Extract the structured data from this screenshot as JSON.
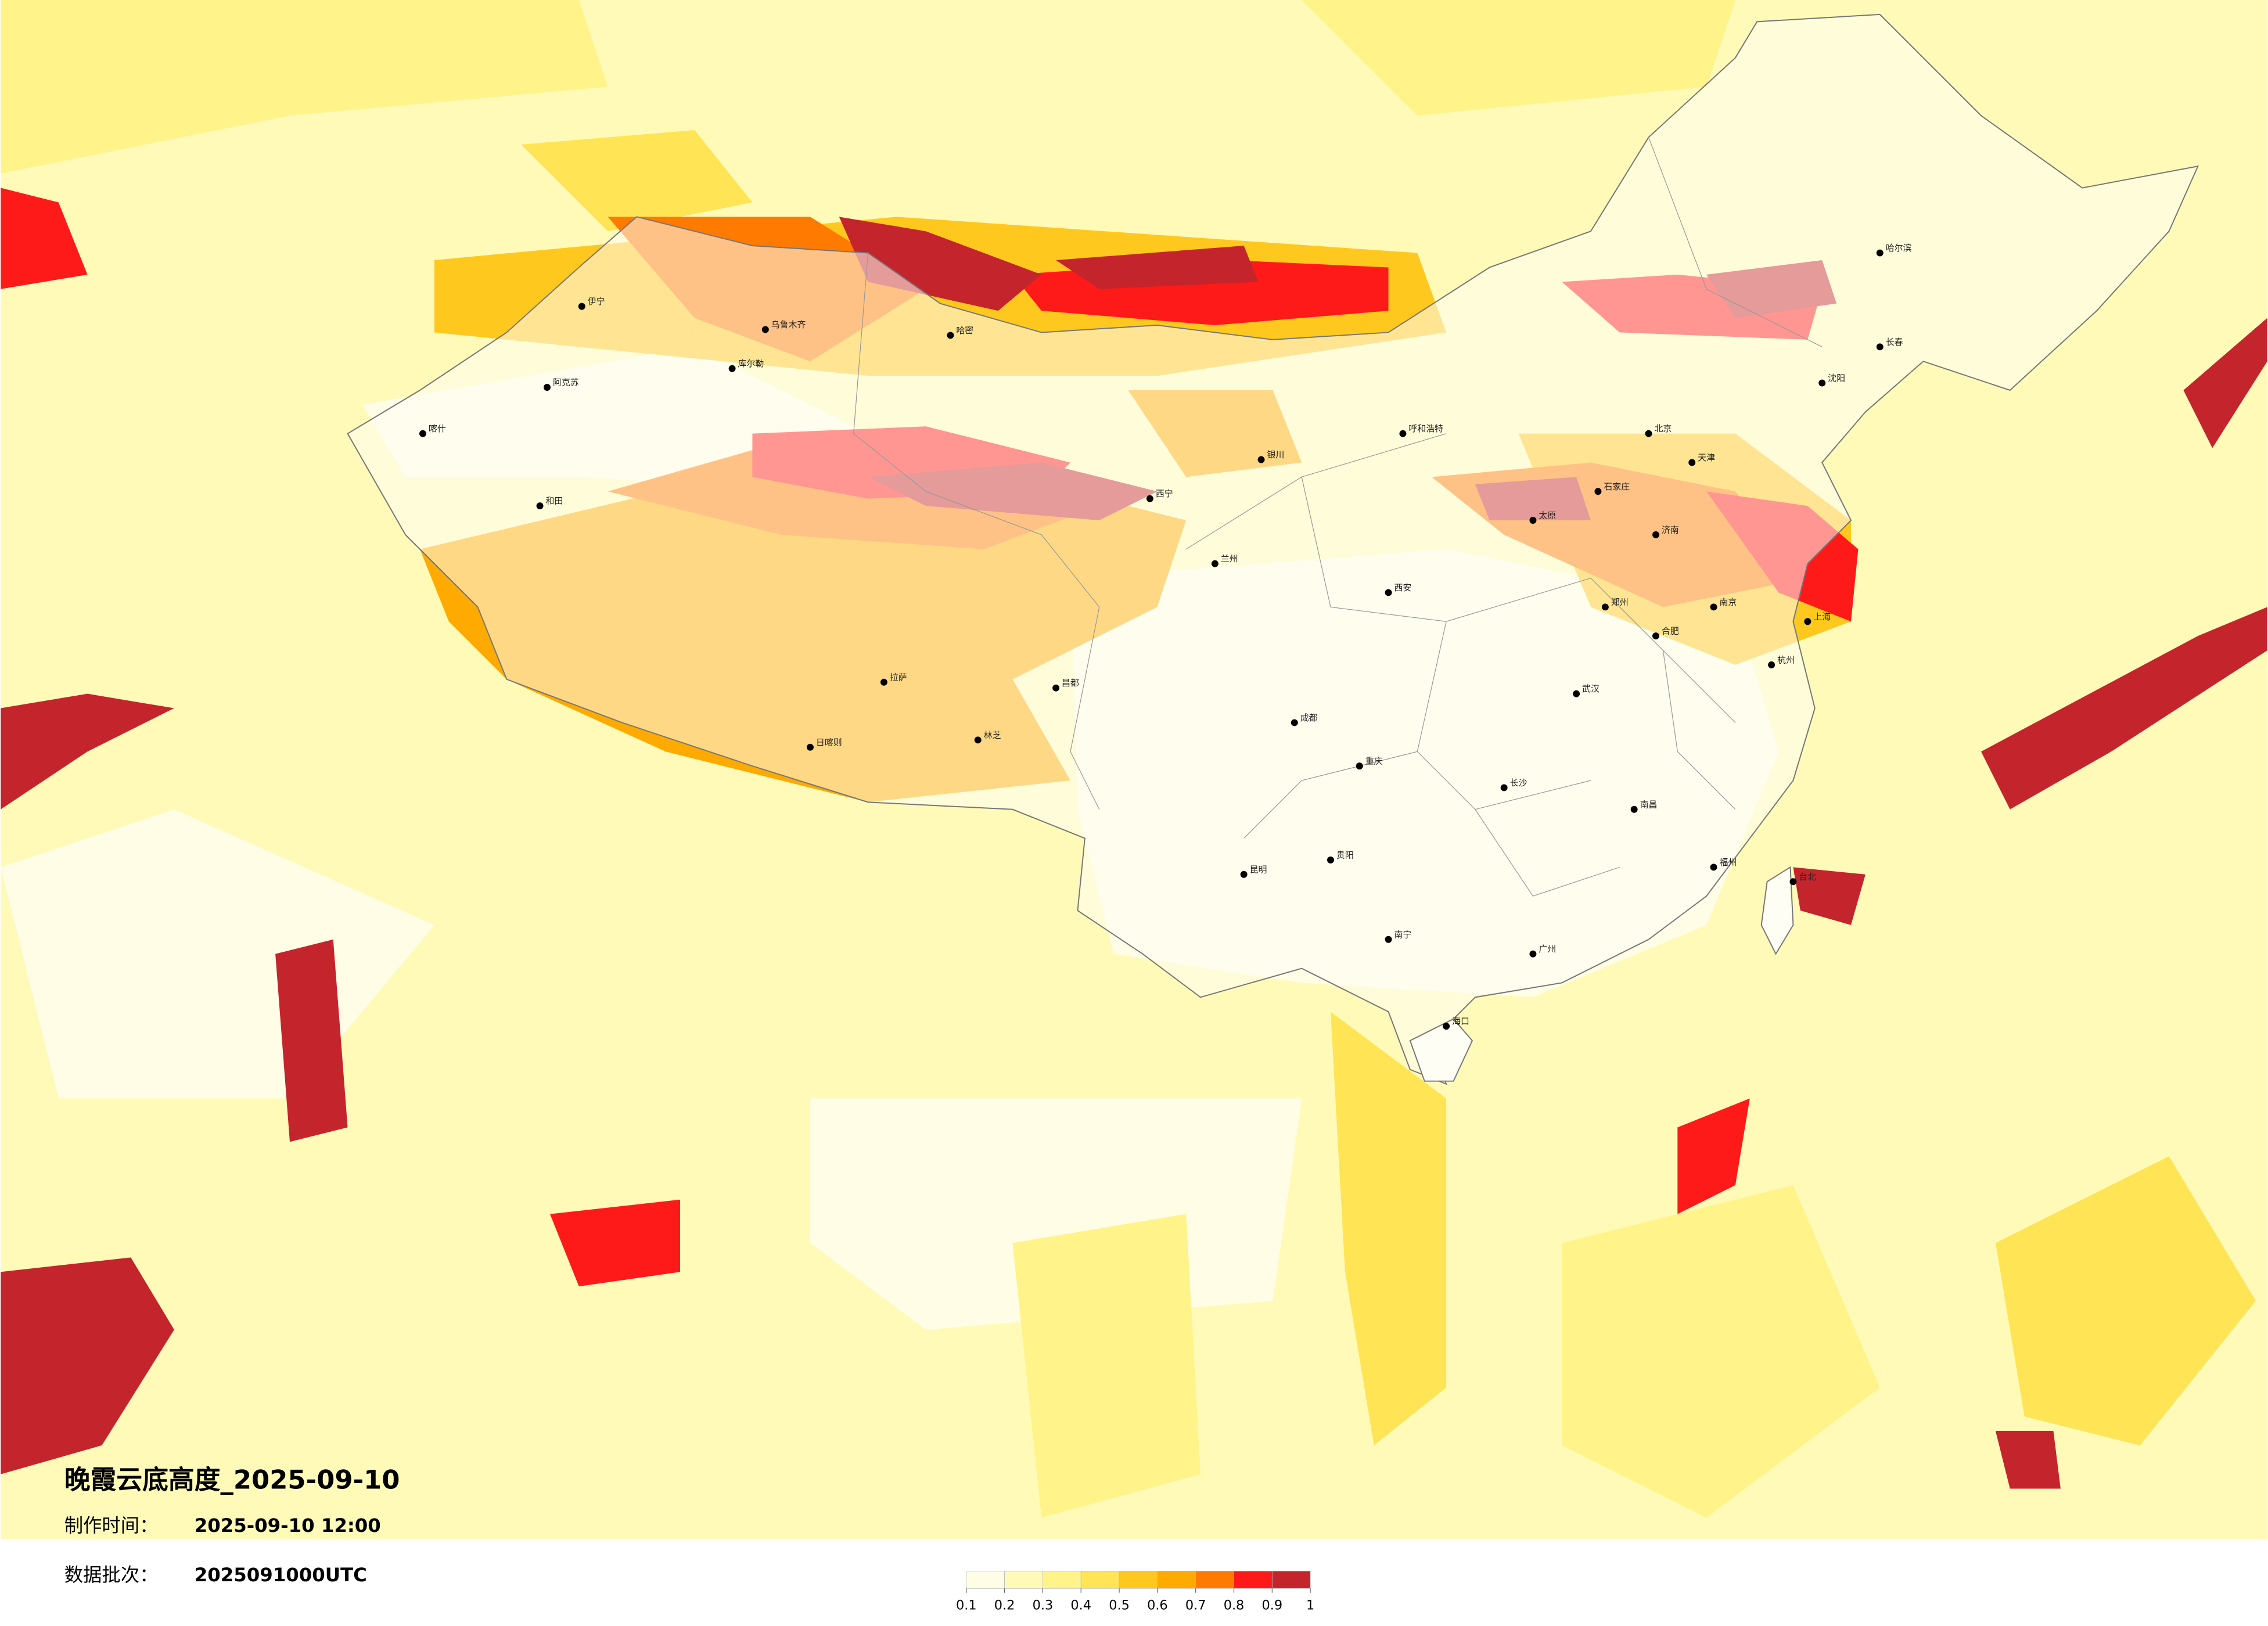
{
  "map": {
    "title": "晚霞云底高度_2025-09-10",
    "made_label": "制作时间：",
    "made_time": "2025-09-10 12:00",
    "batch_label": "数据批次：",
    "batch": "2025091000UTC",
    "colorbar": {
      "ticks": [
        0.1,
        0.2,
        0.3,
        0.4,
        0.5,
        0.6,
        0.7,
        0.8,
        0.9,
        1
      ],
      "colors": [
        "#fffde6",
        "#fffab8",
        "#fff38a",
        "#ffe455",
        "#ffc81e",
        "#ffaa00",
        "#ff7a00",
        "#ff1a1a",
        "#c4242c"
      ]
    },
    "cities": [
      "喀什",
      "和田",
      "阿克苏",
      "伊宁",
      "乌鲁木齐",
      "库尔勒",
      "哈密",
      "拉萨",
      "日喀则",
      "林芝",
      "昌都",
      "西宁",
      "兰州",
      "银川",
      "呼和浩特",
      "北京",
      "天津",
      "石家庄",
      "太原",
      "济南",
      "郑州",
      "西安",
      "成都",
      "重庆",
      "贵阳",
      "昆明",
      "南宁",
      "广州",
      "长沙",
      "武汉",
      "南昌",
      "福州",
      "杭州",
      "上海",
      "南京",
      "合肥",
      "沈阳",
      "长春",
      "哈尔滨",
      "海口",
      "台北"
    ]
  }
}
